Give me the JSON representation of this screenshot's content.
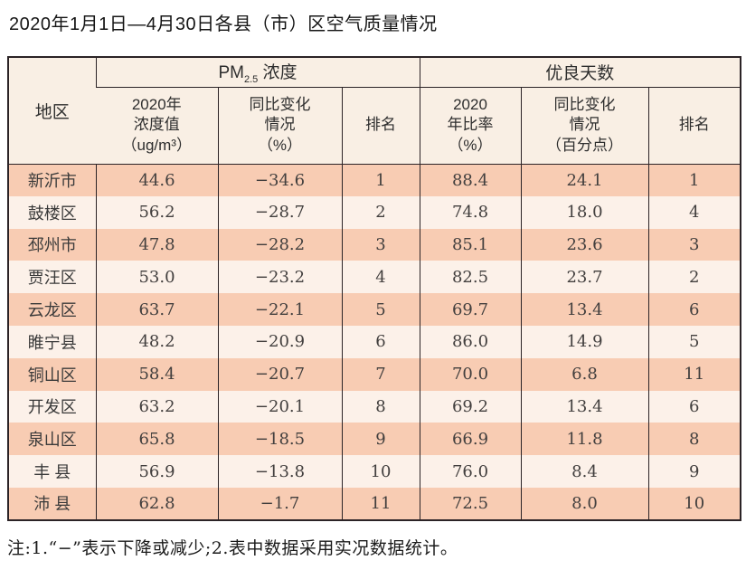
{
  "title": "2020年1月1日—4月30日各县（市）区空气质量情况",
  "table": {
    "region_header": "地区",
    "group_pm": {
      "prefix": "PM",
      "sub": "2.5",
      "suffix": " 浓度"
    },
    "group_good": "优良天数",
    "sub_headers": [
      "2020年\n浓度值\n（ug/m³）",
      "同比变化\n情况\n（%）",
      "排名",
      "2020\n年比率\n（%）",
      "同比变化\n情况\n（百分点）",
      "排名"
    ],
    "rows": [
      {
        "region": "新沂市",
        "pm_value": "44.6",
        "pm_change": "−34.6",
        "pm_rank": "1",
        "good_rate": "88.4",
        "good_change": "24.1",
        "good_rank": "1"
      },
      {
        "region": "鼓楼区",
        "pm_value": "56.2",
        "pm_change": "−28.7",
        "pm_rank": "2",
        "good_rate": "74.8",
        "good_change": "18.0",
        "good_rank": "4"
      },
      {
        "region": "邳州市",
        "pm_value": "47.8",
        "pm_change": "−28.2",
        "pm_rank": "3",
        "good_rate": "85.1",
        "good_change": "23.6",
        "good_rank": "3"
      },
      {
        "region": "贾汪区",
        "pm_value": "53.0",
        "pm_change": "−23.2",
        "pm_rank": "4",
        "good_rate": "82.5",
        "good_change": "23.7",
        "good_rank": "2"
      },
      {
        "region": "云龙区",
        "pm_value": "63.7",
        "pm_change": "−22.1",
        "pm_rank": "5",
        "good_rate": "69.7",
        "good_change": "13.4",
        "good_rank": "6"
      },
      {
        "region": "睢宁县",
        "pm_value": "48.2",
        "pm_change": "−20.9",
        "pm_rank": "6",
        "good_rate": "86.0",
        "good_change": "14.9",
        "good_rank": "5"
      },
      {
        "region": "铜山区",
        "pm_value": "58.4",
        "pm_change": "−20.7",
        "pm_rank": "7",
        "good_rate": "70.0",
        "good_change": "6.8",
        "good_rank": "11"
      },
      {
        "region": "开发区",
        "pm_value": "63.2",
        "pm_change": "−20.1",
        "pm_rank": "8",
        "good_rate": "69.2",
        "good_change": "13.4",
        "good_rank": "6"
      },
      {
        "region": "泉山区",
        "pm_value": "65.8",
        "pm_change": "−18.5",
        "pm_rank": "9",
        "good_rate": "66.9",
        "good_change": "11.8",
        "good_rank": "8"
      },
      {
        "region": "丰 县",
        "pm_value": "56.9",
        "pm_change": "−13.8",
        "pm_rank": "10",
        "good_rate": "76.0",
        "good_change": "8.4",
        "good_rank": "9"
      },
      {
        "region": "沛 县",
        "pm_value": "62.8",
        "pm_change": "−1.7",
        "pm_rank": "11",
        "good_rate": "72.5",
        "good_change": "8.0",
        "good_rank": "10"
      }
    ]
  },
  "note": "注:1.“−”表示下降或减少;2.表中数据采用实况数据统计。",
  "colors": {
    "row_dark": "#f8ccb3",
    "row_light": "#fcf1e9",
    "header_bg": "#f9efe4",
    "border": "#2b2326"
  }
}
